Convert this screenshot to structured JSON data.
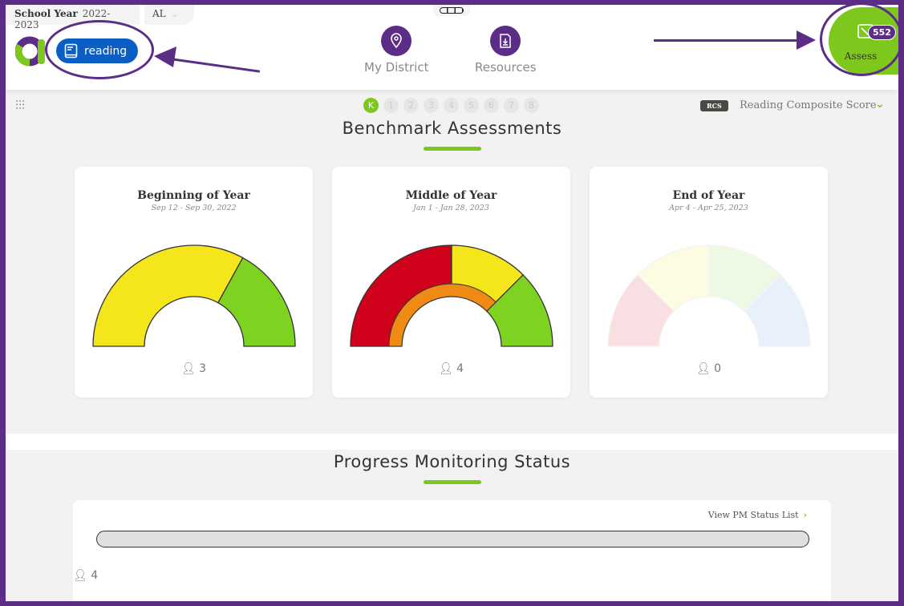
{
  "header": {
    "school_year_label": "School Year",
    "school_year_value": "2022-2023",
    "state": "AL",
    "subject": "reading",
    "nav": [
      {
        "label": "My District",
        "icon": "map-pin-icon"
      },
      {
        "label": "Resources",
        "icon": "download-file-icon"
      }
    ],
    "assess": {
      "label": "Assess",
      "badge": "552"
    }
  },
  "grades": [
    "K",
    "1",
    "2",
    "3",
    "4",
    "5",
    "6",
    "7",
    "8"
  ],
  "selected_grade": "K",
  "score_selector": {
    "badge": "RCS",
    "label": "Reading Composite Score"
  },
  "benchmark": {
    "title": "Benchmark Assessments",
    "cards": [
      {
        "title": "Beginning of Year",
        "dates": "Sep 12 - Sep 30, 2022",
        "count": "3",
        "faded": false,
        "segments": [
          {
            "color": "#f5e51b",
            "fraction": 0.66
          },
          {
            "color": "#7ed321",
            "fraction": 0.34
          }
        ],
        "inner": null
      },
      {
        "title": "Middle of Year",
        "dates": "Jan 1 - Jan 28, 2023",
        "count": "4",
        "faded": false,
        "segments": [
          {
            "color": "#d0021b",
            "fraction": 0.5
          },
          {
            "color": "#f5e51b",
            "fraction": 0.25
          },
          {
            "color": "#7ed321",
            "fraction": 0.25
          }
        ],
        "inner": {
          "fraction": 0.75
        }
      },
      {
        "title": "End of Year",
        "dates": "Apr 4 - Apr 25, 2023",
        "count": "0",
        "faded": true,
        "segments": [
          {
            "color": "#d0021b",
            "fraction": 0.25
          },
          {
            "color": "#f5e51b",
            "fraction": 0.25
          },
          {
            "color": "#7ed321",
            "fraction": 0.25
          },
          {
            "color": "#4a90e2",
            "fraction": 0.25
          }
        ],
        "inner": null
      }
    ]
  },
  "progress": {
    "title": "Progress Monitoring Status",
    "link": "View PM Status List",
    "count": "4"
  },
  "colors": {
    "brand": "#5b2d86",
    "accent": "#7ec81d",
    "subject": "#0b5fc4"
  }
}
